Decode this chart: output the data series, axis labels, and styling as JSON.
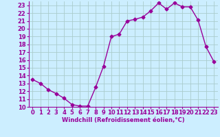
{
  "x": [
    0,
    1,
    2,
    3,
    4,
    5,
    6,
    7,
    8,
    9,
    10,
    11,
    12,
    13,
    14,
    15,
    16,
    17,
    18,
    19,
    20,
    21,
    22,
    23
  ],
  "y": [
    13.5,
    13.0,
    12.2,
    11.7,
    11.1,
    10.3,
    10.1,
    10.1,
    12.5,
    15.2,
    19.0,
    19.3,
    21.0,
    21.2,
    21.5,
    22.3,
    23.3,
    22.5,
    23.3,
    22.8,
    22.8,
    21.1,
    17.7,
    15.8
  ],
  "color": "#990099",
  "bg_color": "#cceeff",
  "grid_color": "#aacccc",
  "xlabel": "Windchill (Refroidissement éolien,°C)",
  "xlabel_color": "#990099",
  "ylim": [
    10,
    23.5
  ],
  "xlim": [
    -0.5,
    23.5
  ],
  "yticks": [
    10,
    11,
    12,
    13,
    14,
    15,
    16,
    17,
    18,
    19,
    20,
    21,
    22,
    23
  ],
  "xticks": [
    0,
    1,
    2,
    3,
    4,
    5,
    6,
    7,
    8,
    9,
    10,
    11,
    12,
    13,
    14,
    15,
    16,
    17,
    18,
    19,
    20,
    21,
    22,
    23
  ],
  "marker": "D",
  "markersize": 2.5,
  "linewidth": 1.0,
  "tick_fontsize": 6.0,
  "xlabel_fontsize": 6.0
}
